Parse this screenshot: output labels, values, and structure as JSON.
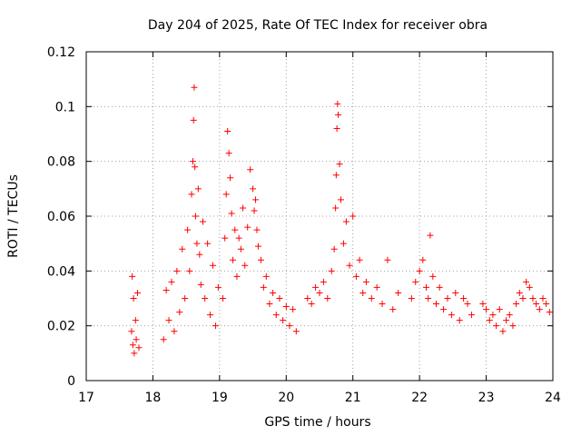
{
  "chart_data": {
    "type": "scatter",
    "title": "Day 204 of 2025, Rate Of TEC Index for receiver obra",
    "xlabel": "GPS time / hours",
    "ylabel": "ROTI / TECUs",
    "xlim": [
      17,
      24
    ],
    "ylim": [
      0,
      0.12
    ],
    "xticks": [
      17,
      18,
      19,
      20,
      21,
      22,
      23,
      24
    ],
    "xtick_labels": [
      "17",
      "18",
      "19",
      "20",
      "21",
      "22",
      "23",
      "24"
    ],
    "yticks": [
      0,
      0.02,
      0.04,
      0.06,
      0.08,
      0.1,
      0.12
    ],
    "ytick_labels": [
      "0",
      "0.02",
      "0.04",
      "0.06",
      "0.08",
      "0.1",
      "0.12"
    ],
    "grid": true,
    "marker": "+",
    "color": "#ff0000",
    "series": [
      {
        "name": "ROTI",
        "x": [
          17.68,
          17.69,
          17.7,
          17.71,
          17.72,
          17.74,
          17.75,
          17.77,
          17.79,
          18.16,
          18.2,
          18.24,
          18.28,
          18.32,
          18.36,
          18.4,
          18.44,
          18.48,
          18.52,
          18.55,
          18.58,
          18.6,
          18.61,
          18.62,
          18.63,
          18.64,
          18.66,
          18.68,
          18.7,
          18.72,
          18.75,
          18.78,
          18.82,
          18.86,
          18.9,
          18.94,
          18.98,
          19.05,
          19.08,
          19.1,
          19.12,
          19.14,
          19.16,
          19.18,
          19.2,
          19.23,
          19.26,
          19.29,
          19.32,
          19.35,
          19.38,
          19.42,
          19.46,
          19.5,
          19.52,
          19.54,
          19.56,
          19.58,
          19.62,
          19.66,
          19.7,
          19.75,
          19.8,
          19.85,
          19.9,
          19.95,
          20.0,
          20.05,
          20.1,
          20.15,
          20.32,
          20.38,
          20.44,
          20.5,
          20.56,
          20.62,
          20.68,
          20.72,
          20.74,
          20.75,
          20.76,
          20.77,
          20.78,
          20.8,
          20.82,
          20.86,
          20.9,
          20.95,
          21.0,
          21.05,
          21.1,
          21.15,
          21.2,
          21.28,
          21.36,
          21.44,
          21.52,
          21.6,
          21.68,
          21.88,
          21.94,
          22.0,
          22.05,
          22.1,
          22.13,
          22.16,
          22.2,
          22.25,
          22.3,
          22.36,
          22.42,
          22.48,
          22.54,
          22.6,
          22.66,
          22.72,
          22.78,
          22.95,
          23.0,
          23.05,
          23.1,
          23.15,
          23.2,
          23.25,
          23.3,
          23.35,
          23.4,
          23.45,
          23.5,
          23.55,
          23.6,
          23.65,
          23.7,
          23.75,
          23.8,
          23.85,
          23.9,
          23.95
        ],
        "y": [
          0.018,
          0.038,
          0.013,
          0.03,
          0.01,
          0.022,
          0.015,
          0.032,
          0.012,
          0.015,
          0.033,
          0.022,
          0.036,
          0.018,
          0.04,
          0.025,
          0.048,
          0.03,
          0.055,
          0.04,
          0.068,
          0.08,
          0.095,
          0.107,
          0.078,
          0.06,
          0.05,
          0.07,
          0.046,
          0.035,
          0.058,
          0.03,
          0.05,
          0.024,
          0.042,
          0.02,
          0.034,
          0.03,
          0.052,
          0.068,
          0.091,
          0.083,
          0.074,
          0.061,
          0.044,
          0.055,
          0.038,
          0.052,
          0.048,
          0.063,
          0.042,
          0.056,
          0.077,
          0.07,
          0.062,
          0.066,
          0.055,
          0.049,
          0.044,
          0.034,
          0.038,
          0.028,
          0.032,
          0.024,
          0.03,
          0.022,
          0.027,
          0.02,
          0.026,
          0.018,
          0.03,
          0.028,
          0.034,
          0.032,
          0.036,
          0.03,
          0.04,
          0.048,
          0.063,
          0.075,
          0.092,
          0.101,
          0.097,
          0.079,
          0.066,
          0.05,
          0.058,
          0.042,
          0.06,
          0.038,
          0.044,
          0.032,
          0.036,
          0.03,
          0.034,
          0.028,
          0.044,
          0.026,
          0.032,
          0.03,
          0.036,
          0.04,
          0.044,
          0.034,
          0.03,
          0.053,
          0.038,
          0.028,
          0.034,
          0.026,
          0.03,
          0.024,
          0.032,
          0.022,
          0.03,
          0.028,
          0.024,
          0.028,
          0.026,
          0.022,
          0.024,
          0.02,
          0.026,
          0.018,
          0.022,
          0.024,
          0.02,
          0.028,
          0.032,
          0.03,
          0.036,
          0.034,
          0.03,
          0.028,
          0.026,
          0.03,
          0.028,
          0.025
        ]
      }
    ]
  }
}
